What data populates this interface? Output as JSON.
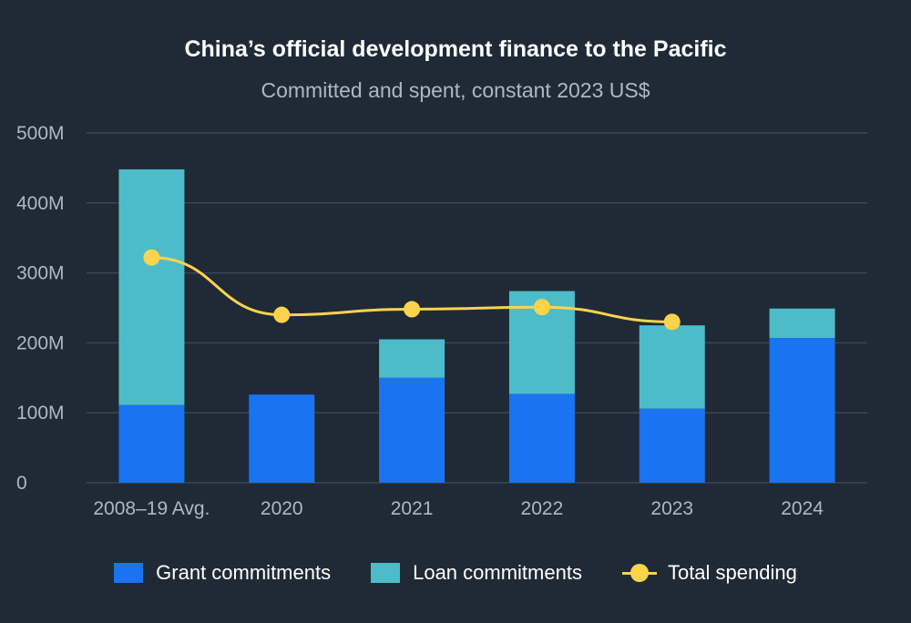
{
  "title": "China’s official development finance to the Pacific",
  "subtitle": "Committed and spent, constant 2023 US$",
  "colors": {
    "grant": "#1a73f0",
    "loan": "#4dbcc9",
    "spending": "#fcd34d",
    "grid": "#3a4654",
    "background": "#1f2a36"
  },
  "legend": {
    "grant": "Grant commitments",
    "loan": "Loan commitments",
    "spending": "Total spending"
  },
  "chart_data": {
    "type": "bar",
    "stacked": true,
    "categories": [
      "2008–19 Avg.",
      "2020",
      "2021",
      "2022",
      "2023",
      "2024"
    ],
    "series": [
      {
        "name": "Grant commitments",
        "kind": "bar",
        "values": [
          111,
          126,
          150,
          127,
          106,
          207
        ]
      },
      {
        "name": "Loan commitments",
        "kind": "bar",
        "values": [
          337,
          0,
          55,
          147,
          119,
          42
        ]
      },
      {
        "name": "Total spending",
        "kind": "line",
        "values": [
          322,
          240,
          248,
          251,
          230,
          null
        ]
      }
    ],
    "ylim": [
      0,
      500
    ],
    "yticks": [
      0,
      100,
      200,
      300,
      400,
      500
    ],
    "ytick_labels": [
      "0",
      "100M",
      "200M",
      "300M",
      "400M",
      "500M"
    ],
    "grid": true,
    "legend_position": "bottom"
  }
}
